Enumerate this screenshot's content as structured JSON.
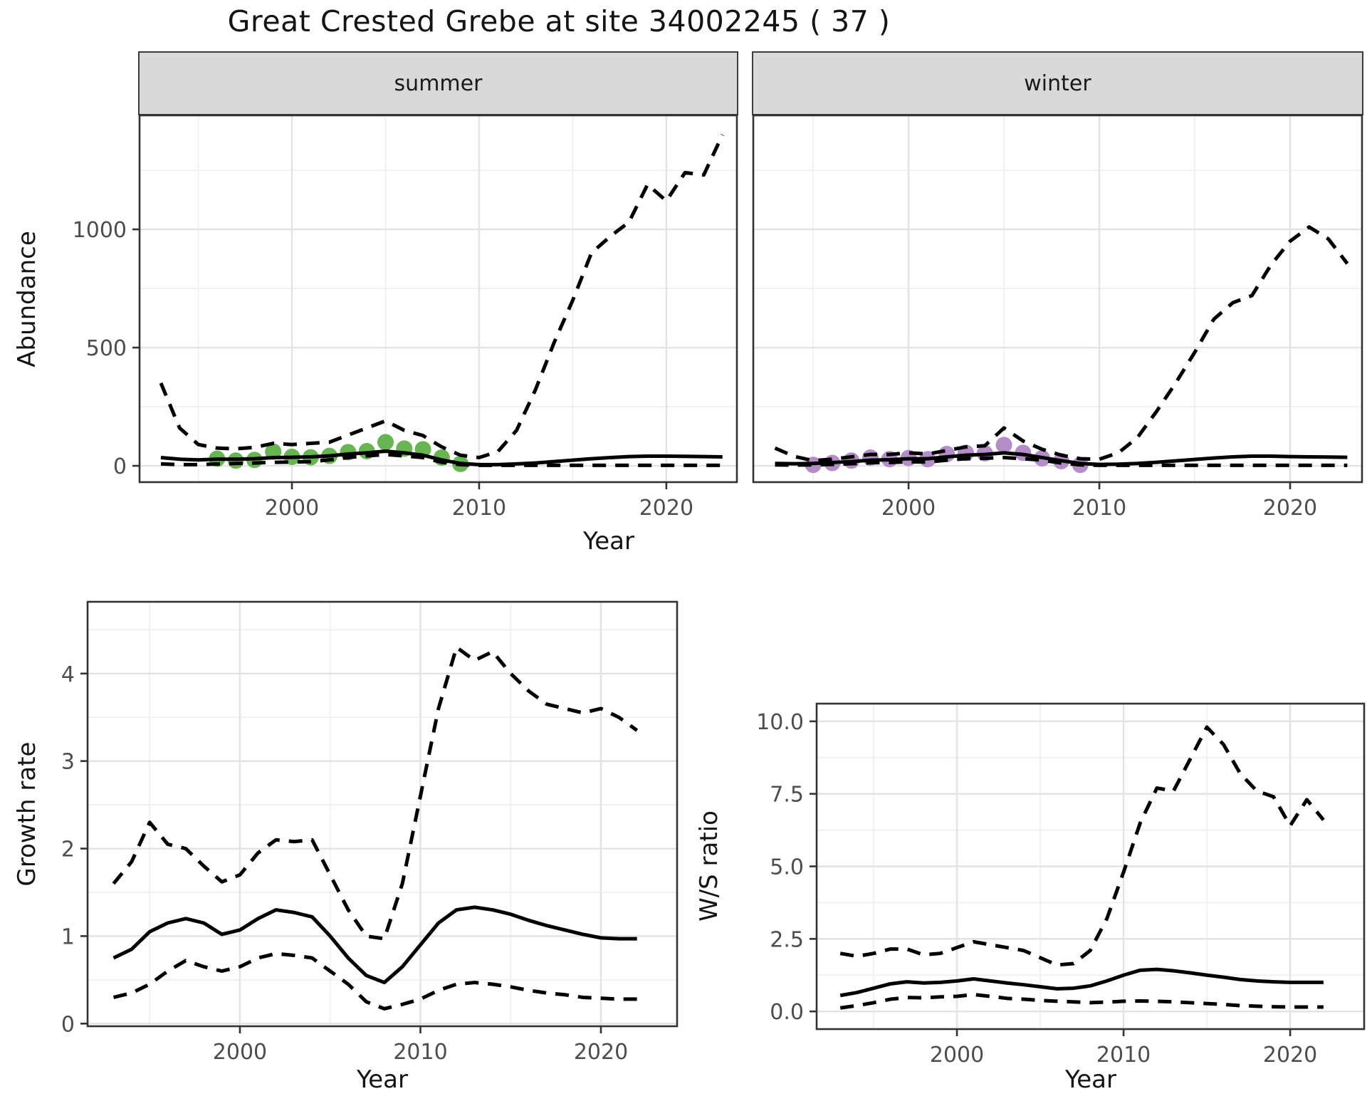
{
  "colors": {
    "summer_point": "#66b551",
    "winter_point": "#b48cc8",
    "line": "#000000",
    "strip_bg": "#d9d9d9",
    "panel_border": "#333333",
    "grid_major": "#e3e3e3",
    "grid_minor": "#f1f1f1",
    "tick_text": "#4d4d4d",
    "label_text": "#141414"
  },
  "chart_data": {
    "type": "line",
    "title": "Great Crested Grebe at site 34002245 ( 37 )",
    "xlabel": "Year",
    "ylabels": {
      "abundance": "Abundance",
      "growth": "Growth rate",
      "ws": "W/S ratio"
    },
    "legend": "none",
    "grid": "major+minor",
    "panels": [
      {
        "id": "abundance-summer",
        "facet_label": "summer",
        "xlim": [
          1991.86,
          2023.77
        ],
        "ylim": [
          -69,
          1482
        ],
        "xticks": [
          2000,
          2010,
          2020
        ],
        "xtick_labels": [
          "2000",
          "2010",
          "2020"
        ],
        "yticks": [
          0,
          500,
          1000
        ],
        "ytick_labels": [
          "0",
          "500",
          "1000"
        ],
        "x_minor": [
          1995,
          2005,
          2015
        ],
        "y_minor": [
          250,
          750,
          1250
        ],
        "y_axis": true,
        "series": [
          {
            "name": "observed-counts",
            "linetype": "points",
            "color": "#66b551",
            "x0": 1996,
            "y": [
              30,
              22,
              25,
              60,
              38,
              36,
              42,
              58,
              62,
              100,
              73,
              70,
              35,
              8
            ]
          },
          {
            "name": "lower-ci",
            "linetype": "dashed",
            "x0": 1993,
            "y": [
              8,
              5,
              5,
              8,
              10,
              12,
              15,
              16,
              18,
              25,
              35,
              42,
              48,
              42,
              35,
              15,
              5,
              2,
              2,
              2,
              2,
              2,
              2,
              2,
              2,
              2,
              2,
              2,
              2,
              2,
              2
            ]
          },
          {
            "name": "median",
            "linetype": "solid",
            "x0": 1993,
            "y": [
              35,
              28,
              25,
              28,
              28,
              30,
              35,
              36,
              38,
              42,
              50,
              55,
              62,
              55,
              45,
              25,
              10,
              5,
              5,
              8,
              12,
              18,
              24,
              30,
              35,
              39,
              41,
              41,
              40,
              39,
              38
            ]
          },
          {
            "name": "upper-ci",
            "linetype": "dashed",
            "x0": 1993,
            "y": [
              350,
              160,
              90,
              75,
              72,
              78,
              95,
              90,
              95,
              100,
              130,
              160,
              190,
              150,
              128,
              80,
              45,
              35,
              60,
              150,
              320,
              520,
              700,
              900,
              970,
              1030,
              1190,
              1120,
              1240,
              1230,
              1400
            ]
          }
        ]
      },
      {
        "id": "abundance-winter",
        "facet_label": "winter",
        "xlim": [
          1991.86,
          2023.77
        ],
        "ylim": [
          -69,
          1482
        ],
        "xticks": [
          2000,
          2010,
          2020
        ],
        "xtick_labels": [
          "2000",
          "2010",
          "2020"
        ],
        "yticks": [
          0,
          500,
          1000
        ],
        "ytick_labels": [
          "0",
          "500",
          "1000"
        ],
        "x_minor": [
          1995,
          2005,
          2015
        ],
        "y_minor": [
          250,
          750,
          1250
        ],
        "y_axis": false,
        "series": [
          {
            "name": "observed-counts",
            "linetype": "points",
            "color": "#b48cc8",
            "x0": 1995,
            "y": [
              4,
              12,
              22,
              35,
              28,
              33,
              28,
              50,
              55,
              53,
              88,
              55,
              32,
              20,
              4
            ]
          },
          {
            "name": "lower-ci",
            "linetype": "dashed",
            "x0": 1993,
            "y": [
              4,
              3,
              4,
              6,
              9,
              13,
              14,
              17,
              16,
              24,
              30,
              32,
              35,
              30,
              24,
              12,
              4,
              2,
              2,
              2,
              2,
              2,
              2,
              2,
              2,
              2,
              2,
              2,
              2,
              2,
              2
            ]
          },
          {
            "name": "median",
            "linetype": "solid",
            "x0": 1993,
            "y": [
              10,
              9,
              10,
              14,
              18,
              24,
              26,
              30,
              30,
              38,
              45,
              48,
              55,
              48,
              35,
              22,
              10,
              6,
              7,
              10,
              15,
              21,
              27,
              33,
              38,
              41,
              41,
              39,
              38,
              37,
              36
            ]
          },
          {
            "name": "upper-ci",
            "linetype": "dashed",
            "x0": 1993,
            "y": [
              75,
              40,
              22,
              28,
              38,
              48,
              48,
              55,
              50,
              65,
              80,
              85,
              160,
              105,
              70,
              45,
              30,
              28,
              55,
              120,
              230,
              350,
              480,
              620,
              690,
              720,
              850,
              950,
              1010,
              960,
              855
            ]
          }
        ]
      },
      {
        "id": "growth-rate",
        "facet_label": "",
        "xlim": [
          1991.56,
          2024.22
        ],
        "ylim": [
          -0.03,
          4.82
        ],
        "xticks": [
          2000,
          2010,
          2020
        ],
        "xtick_labels": [
          "2000",
          "2010",
          "2020"
        ],
        "yticks": [
          0,
          1,
          2,
          3,
          4
        ],
        "ytick_labels": [
          "0",
          "1",
          "2",
          "3",
          "4"
        ],
        "x_minor": [
          1995,
          2005,
          2015
        ],
        "y_minor": [
          0.5,
          1.5,
          2.5,
          3.5,
          4.5
        ],
        "y_axis": true,
        "series": [
          {
            "name": "lower-ci",
            "linetype": "dashed",
            "x0": 1993,
            "y": [
              0.3,
              0.35,
              0.45,
              0.6,
              0.72,
              0.65,
              0.6,
              0.65,
              0.75,
              0.8,
              0.78,
              0.75,
              0.6,
              0.45,
              0.25,
              0.17,
              0.22,
              0.28,
              0.38,
              0.45,
              0.47,
              0.45,
              0.42,
              0.38,
              0.35,
              0.33,
              0.3,
              0.29,
              0.28,
              0.28
            ]
          },
          {
            "name": "median",
            "linetype": "solid",
            "x0": 1993,
            "y": [
              0.75,
              0.85,
              1.05,
              1.15,
              1.2,
              1.15,
              1.02,
              1.07,
              1.2,
              1.3,
              1.27,
              1.22,
              1.0,
              0.75,
              0.55,
              0.47,
              0.65,
              0.9,
              1.15,
              1.3,
              1.33,
              1.3,
              1.25,
              1.18,
              1.12,
              1.07,
              1.02,
              0.98,
              0.97,
              0.97
            ]
          },
          {
            "name": "upper-ci",
            "linetype": "dashed",
            "x0": 1993,
            "y": [
              1.6,
              1.85,
              2.3,
              2.05,
              2.0,
              1.8,
              1.62,
              1.7,
              1.95,
              2.1,
              2.08,
              2.1,
              1.7,
              1.3,
              1.0,
              0.97,
              1.6,
              2.6,
              3.6,
              4.3,
              4.15,
              4.25,
              4.0,
              3.8,
              3.65,
              3.6,
              3.55,
              3.6,
              3.5,
              3.35
            ]
          }
        ]
      },
      {
        "id": "ws-ratio",
        "facet_label": "",
        "xlim": [
          1991.58,
          2024.44
        ],
        "ylim": [
          -0.61,
          10.61
        ],
        "xticks": [
          2000,
          2010,
          2020
        ],
        "xtick_labels": [
          "2000",
          "2010",
          "2020"
        ],
        "yticks": [
          0,
          2.5,
          5,
          7.5,
          10
        ],
        "ytick_labels": [
          "0.0",
          "2.5",
          "5.0",
          "7.5",
          "10.0"
        ],
        "x_minor": [
          1995,
          2005,
          2015
        ],
        "y_minor": [
          1.25,
          3.75,
          6.25,
          8.75
        ],
        "y_axis": true,
        "series": [
          {
            "name": "lower-ci",
            "linetype": "dashed",
            "x0": 1993,
            "y": [
              0.12,
              0.2,
              0.3,
              0.42,
              0.48,
              0.47,
              0.5,
              0.52,
              0.58,
              0.52,
              0.45,
              0.42,
              0.38,
              0.35,
              0.33,
              0.3,
              0.32,
              0.35,
              0.36,
              0.35,
              0.33,
              0.3,
              0.27,
              0.24,
              0.2,
              0.18,
              0.16,
              0.15,
              0.15,
              0.15
            ]
          },
          {
            "name": "median",
            "linetype": "solid",
            "x0": 1993,
            "y": [
              0.55,
              0.65,
              0.8,
              0.95,
              1.02,
              0.98,
              1.0,
              1.05,
              1.12,
              1.05,
              0.98,
              0.92,
              0.85,
              0.78,
              0.8,
              0.88,
              1.05,
              1.25,
              1.42,
              1.45,
              1.4,
              1.33,
              1.25,
              1.18,
              1.1,
              1.05,
              1.02,
              1.0,
              1.0,
              1.0
            ]
          },
          {
            "name": "upper-ci",
            "linetype": "dashed",
            "x0": 1993,
            "y": [
              2.0,
              1.9,
              2.0,
              2.15,
              2.15,
              1.95,
              2.0,
              2.2,
              2.4,
              2.3,
              2.2,
              2.1,
              1.85,
              1.6,
              1.65,
              2.1,
              3.2,
              4.8,
              6.5,
              7.7,
              7.6,
              8.7,
              9.8,
              9.2,
              8.2,
              7.6,
              7.4,
              6.4,
              7.3,
              6.6
            ]
          }
        ]
      }
    ]
  }
}
